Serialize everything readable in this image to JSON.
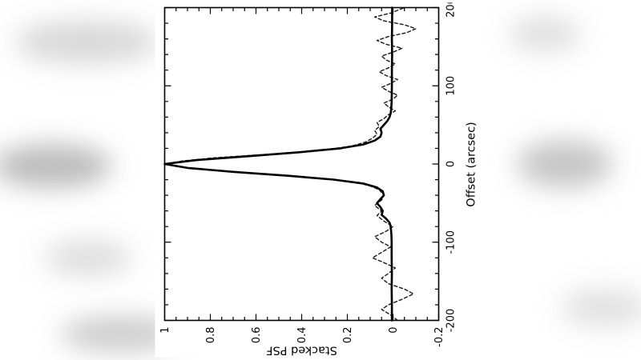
{
  "figure": {
    "rotation_deg": -90,
    "background": "#ffffff",
    "line_color": "#000000"
  },
  "chart_data": {
    "type": "line",
    "title": "",
    "xlabel": "Offset (arcsec)",
    "ylabel": "Stacked PSF",
    "xlim": [
      -200,
      200
    ],
    "ylim": [
      -0.2,
      1.0
    ],
    "xticks": [
      -200,
      -100,
      0,
      100,
      200
    ],
    "xtick_labels": [
      "-200",
      "-100",
      "0",
      "100",
      "200"
    ],
    "yticks": [
      -0.2,
      0,
      0.2,
      0.4,
      0.6,
      0.8,
      1
    ],
    "ytick_labels": [
      "-0.2",
      "0",
      "0.2",
      "0.4",
      "0.6",
      "0.8",
      "1"
    ],
    "x_minor_step": 20,
    "y_minor_step": 0.05,
    "grid": false,
    "legend": null,
    "layout_note": "figure displayed rotated 90 degrees counter-clockwise",
    "series": [
      {
        "name": "stacked PSF (dashed, noisy)",
        "style": "dashed",
        "color": "#1a1a1a",
        "width": 1.4,
        "points": [
          [
            -200,
            -0.02
          ],
          [
            -193,
            0.01
          ],
          [
            -186,
            0.05
          ],
          [
            -180,
            0.02
          ],
          [
            -173,
            -0.04
          ],
          [
            -166,
            -0.09
          ],
          [
            -160,
            -0.05
          ],
          [
            -153,
            0.02
          ],
          [
            -146,
            0.05
          ],
          [
            -140,
            0.02
          ],
          [
            -133,
            -0.01
          ],
          [
            -126,
            0.04
          ],
          [
            -120,
            0.09
          ],
          [
            -113,
            0.05
          ],
          [
            -106,
            0.01
          ],
          [
            -100,
            0.05
          ],
          [
            -93,
            0.08
          ],
          [
            -86,
            0.03
          ],
          [
            -80,
            0.0
          ],
          [
            -73,
            0.04
          ],
          [
            -66,
            0.07
          ],
          [
            -60,
            0.05
          ],
          [
            -53,
            0.08
          ],
          [
            -46,
            0.05
          ],
          [
            -40,
            0.04
          ],
          [
            -33,
            0.06
          ],
          [
            -28,
            0.1
          ],
          [
            -23,
            0.17
          ],
          [
            -18,
            0.32
          ],
          [
            -13,
            0.55
          ],
          [
            -8,
            0.8
          ],
          [
            -4,
            0.93
          ],
          [
            0,
            1.0
          ],
          [
            4,
            0.92
          ],
          [
            8,
            0.78
          ],
          [
            13,
            0.52
          ],
          [
            18,
            0.3
          ],
          [
            23,
            0.18
          ],
          [
            28,
            0.12
          ],
          [
            33,
            0.09
          ],
          [
            38,
            0.07
          ],
          [
            43,
            0.08
          ],
          [
            48,
            0.06
          ],
          [
            53,
            0.07
          ],
          [
            58,
            0.04
          ],
          [
            63,
            0.02
          ],
          [
            68,
            -0.01
          ],
          [
            73,
            0.02
          ],
          [
            78,
            0.04
          ],
          [
            83,
            0.0
          ],
          [
            88,
            -0.02
          ],
          [
            93,
            0.02
          ],
          [
            98,
            0.05
          ],
          [
            103,
            0.01
          ],
          [
            108,
            -0.02
          ],
          [
            113,
            0.03
          ],
          [
            118,
            0.06
          ],
          [
            123,
            0.02
          ],
          [
            128,
            -0.01
          ],
          [
            133,
            0.03
          ],
          [
            138,
            0.05
          ],
          [
            143,
            0.0
          ],
          [
            148,
            -0.04
          ],
          [
            153,
            0.03
          ],
          [
            158,
            0.07
          ],
          [
            163,
            0.02
          ],
          [
            168,
            -0.06
          ],
          [
            173,
            -0.1
          ],
          [
            178,
            -0.05
          ],
          [
            183,
            0.04
          ],
          [
            188,
            0.08
          ],
          [
            193,
            0.01
          ],
          [
            200,
            -0.05
          ]
        ]
      },
      {
        "name": "stacked PSF (solid)",
        "style": "solid",
        "color": "#000000",
        "width": 2.6,
        "points": [
          [
            -200,
            0.005
          ],
          [
            -180,
            0.005
          ],
          [
            -160,
            0.006
          ],
          [
            -140,
            0.005
          ],
          [
            -120,
            0.006
          ],
          [
            -100,
            0.006
          ],
          [
            -90,
            0.007
          ],
          [
            -80,
            0.01
          ],
          [
            -75,
            0.015
          ],
          [
            -70,
            0.03
          ],
          [
            -65,
            0.05
          ],
          [
            -60,
            0.045
          ],
          [
            -55,
            0.055
          ],
          [
            -50,
            0.07
          ],
          [
            -45,
            0.055
          ],
          [
            -40,
            0.04
          ],
          [
            -35,
            0.045
          ],
          [
            -30,
            0.07
          ],
          [
            -25,
            0.13
          ],
          [
            -20,
            0.26
          ],
          [
            -15,
            0.46
          ],
          [
            -10,
            0.7
          ],
          [
            -5,
            0.9
          ],
          [
            0,
            1.0
          ],
          [
            5,
            0.86
          ],
          [
            10,
            0.63
          ],
          [
            15,
            0.41
          ],
          [
            20,
            0.23
          ],
          [
            25,
            0.13
          ],
          [
            30,
            0.08
          ],
          [
            35,
            0.055
          ],
          [
            40,
            0.05
          ],
          [
            45,
            0.055
          ],
          [
            50,
            0.04
          ],
          [
            55,
            0.025
          ],
          [
            60,
            0.015
          ],
          [
            65,
            0.01
          ],
          [
            70,
            0.008
          ],
          [
            80,
            0.006
          ],
          [
            100,
            0.005
          ],
          [
            120,
            0.005
          ],
          [
            140,
            0.004
          ],
          [
            160,
            0.005
          ],
          [
            180,
            0.004
          ],
          [
            200,
            0.004
          ]
        ]
      }
    ]
  }
}
